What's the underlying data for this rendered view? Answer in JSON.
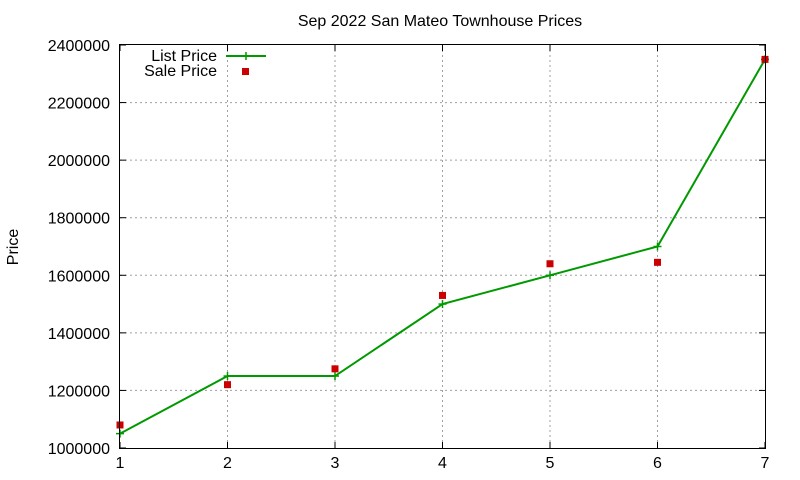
{
  "chart_data": {
    "type": "line",
    "title": "Sep 2022 San Mateo Townhouse Prices",
    "xlabel": "",
    "ylabel": "Price",
    "x": [
      1,
      2,
      3,
      4,
      5,
      6,
      7
    ],
    "xlim": [
      1,
      7
    ],
    "ylim": [
      1000000,
      2400000
    ],
    "xticks": [
      "1",
      "2",
      "3",
      "4",
      "5",
      "6",
      "7"
    ],
    "yticks": [
      "1000000",
      "1200000",
      "1400000",
      "1600000",
      "1800000",
      "2000000",
      "2200000",
      "2400000"
    ],
    "grid": true,
    "legend_position": "top-left",
    "series": [
      {
        "name": "List Price",
        "style": "line-with-plus-markers",
        "color": "#009900",
        "values": [
          1050000,
          1250000,
          1250000,
          1500000,
          1600000,
          1700000,
          2350000
        ]
      },
      {
        "name": "Sale Price",
        "style": "square-markers",
        "color": "#cc0000",
        "values": [
          1080000,
          1220000,
          1275000,
          1530000,
          1640000,
          1645000,
          2350000
        ]
      }
    ]
  }
}
